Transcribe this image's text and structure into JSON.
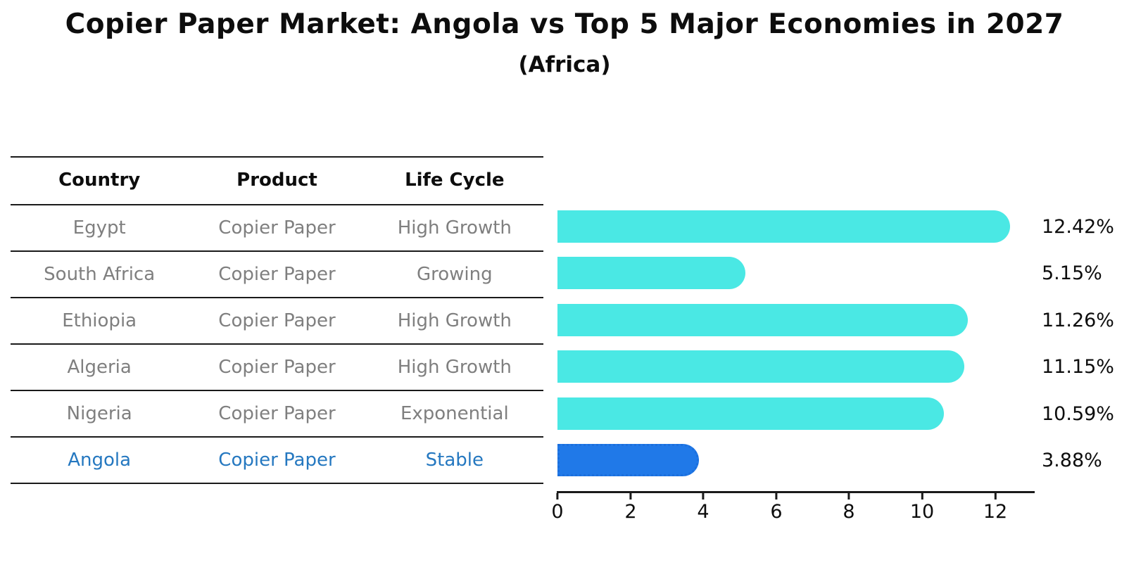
{
  "title": "Copier Paper Market: Angola vs Top 5 Major Economies in 2027",
  "subtitle": "(Africa)",
  "table": {
    "headers": [
      "Country",
      "Product",
      "Life Cycle"
    ],
    "rows": [
      {
        "country": "Egypt",
        "product": "Copier Paper",
        "life_cycle": "High Growth",
        "highlighted": false
      },
      {
        "country": "South Africa",
        "product": "Copier Paper",
        "life_cycle": "Growing",
        "highlighted": false
      },
      {
        "country": "Ethiopia",
        "product": "Copier Paper",
        "life_cycle": "High Growth",
        "highlighted": false
      },
      {
        "country": "Algeria",
        "product": "Copier Paper",
        "life_cycle": "High Growth",
        "highlighted": false
      },
      {
        "country": "Nigeria",
        "product": "Copier Paper",
        "life_cycle": "Exponential",
        "highlighted": false
      },
      {
        "country": "Angola",
        "product": "Copier Paper",
        "life_cycle": "Stable",
        "highlighted": true
      }
    ]
  },
  "chart_data": {
    "type": "bar",
    "orientation": "horizontal",
    "title": "Copier Paper Market: Angola vs Top 5 Major Economies in 2027",
    "subtitle": "(Africa)",
    "categories": [
      "Egypt",
      "South Africa",
      "Ethiopia",
      "Algeria",
      "Nigeria",
      "Angola"
    ],
    "values": [
      12.42,
      5.15,
      11.26,
      11.15,
      10.59,
      3.88
    ],
    "value_labels": [
      "12.42%",
      "5.15%",
      "11.26%",
      "11.15%",
      "10.59%",
      "3.88%"
    ],
    "x_ticks": [
      0,
      2,
      4,
      6,
      8,
      10,
      12
    ],
    "xlim": [
      0,
      13.1
    ],
    "highlight_index": 5,
    "units": "%",
    "grid": false,
    "legend": false
  },
  "colors": {
    "bar": "#4ae8e4",
    "highlight_bar": "#2079e8",
    "highlight_border": "#1b6fdd",
    "highlight_text": "#2578c0",
    "row_text": "#7f7f7f",
    "header_text": "#0d0d0d",
    "axis": "#1a1a1a"
  }
}
